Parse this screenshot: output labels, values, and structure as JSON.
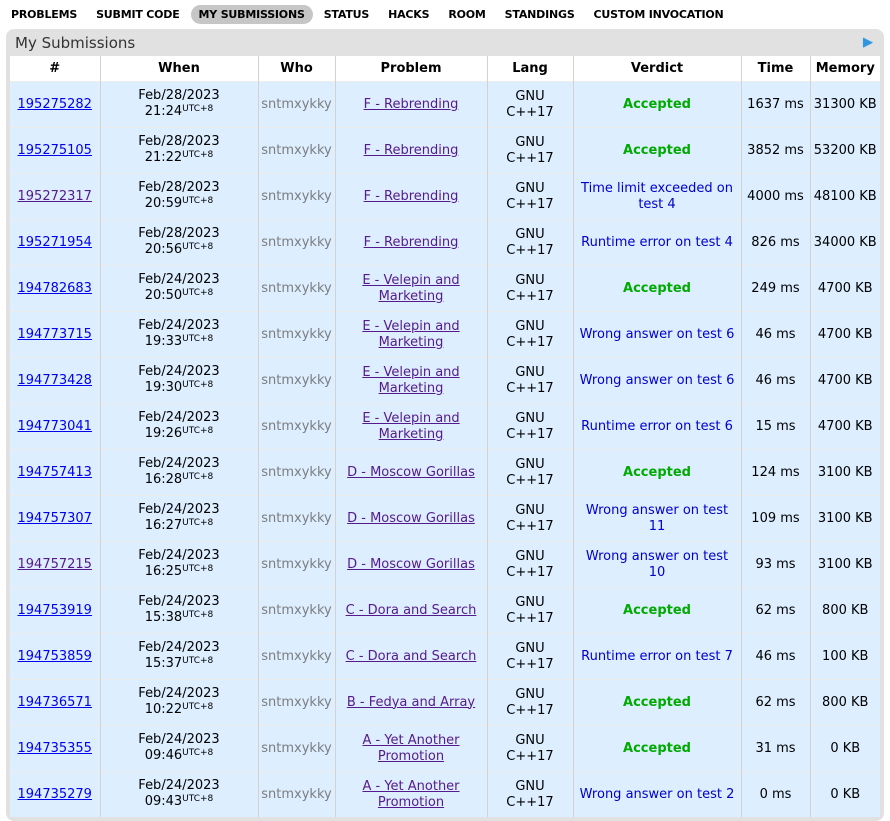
{
  "nav": {
    "items": [
      {
        "label": "PROBLEMS",
        "active": false
      },
      {
        "label": "SUBMIT CODE",
        "active": false
      },
      {
        "label": "MY SUBMISSIONS",
        "active": true
      },
      {
        "label": "STATUS",
        "active": false
      },
      {
        "label": "HACKS",
        "active": false
      },
      {
        "label": "ROOM",
        "active": false
      },
      {
        "label": "STANDINGS",
        "active": false
      },
      {
        "label": "CUSTOM INVOCATION",
        "active": false
      }
    ]
  },
  "panel": {
    "title": "My Submissions",
    "arrow_icon": "play-arrow-icon",
    "arrow_glyph": "▶"
  },
  "table": {
    "headers": [
      "#",
      "When",
      "Who",
      "Problem",
      "Lang",
      "Verdict",
      "Time",
      "Memory"
    ],
    "rows": [
      {
        "id": "195275282",
        "id_visited": false,
        "date": "Feb/28/2023",
        "time": "21:24",
        "tz": "UTC+8",
        "who": "sntmxykky",
        "problem": "F - Rebrending",
        "lang": "GNU C++17",
        "verdict": "Accepted",
        "verdict_type": "accepted",
        "exec_time": "1637 ms",
        "memory": "31300 KB"
      },
      {
        "id": "195275105",
        "id_visited": false,
        "date": "Feb/28/2023",
        "time": "21:22",
        "tz": "UTC+8",
        "who": "sntmxykky",
        "problem": "F - Rebrending",
        "lang": "GNU C++17",
        "verdict": "Accepted",
        "verdict_type": "accepted",
        "exec_time": "3852 ms",
        "memory": "53200 KB"
      },
      {
        "id": "195272317",
        "id_visited": true,
        "date": "Feb/28/2023",
        "time": "20:59",
        "tz": "UTC+8",
        "who": "sntmxykky",
        "problem": "F - Rebrending",
        "lang": "GNU C++17",
        "verdict": "Time limit exceeded on test 4",
        "verdict_type": "rejected",
        "exec_time": "4000 ms",
        "memory": "48100 KB"
      },
      {
        "id": "195271954",
        "id_visited": false,
        "date": "Feb/28/2023",
        "time": "20:56",
        "tz": "UTC+8",
        "who": "sntmxykky",
        "problem": "F - Rebrending",
        "lang": "GNU C++17",
        "verdict": "Runtime error on test 4",
        "verdict_type": "rejected",
        "exec_time": "826 ms",
        "memory": "34000 KB"
      },
      {
        "id": "194782683",
        "id_visited": false,
        "date": "Feb/24/2023",
        "time": "20:50",
        "tz": "UTC+8",
        "who": "sntmxykky",
        "problem": "E - Velepin and Marketing",
        "lang": "GNU C++17",
        "verdict": "Accepted",
        "verdict_type": "accepted",
        "exec_time": "249 ms",
        "memory": "4700 KB"
      },
      {
        "id": "194773715",
        "id_visited": false,
        "date": "Feb/24/2023",
        "time": "19:33",
        "tz": "UTC+8",
        "who": "sntmxykky",
        "problem": "E - Velepin and Marketing",
        "lang": "GNU C++17",
        "verdict": "Wrong answer on test 6",
        "verdict_type": "rejected",
        "exec_time": "46 ms",
        "memory": "4700 KB"
      },
      {
        "id": "194773428",
        "id_visited": false,
        "date": "Feb/24/2023",
        "time": "19:30",
        "tz": "UTC+8",
        "who": "sntmxykky",
        "problem": "E - Velepin and Marketing",
        "lang": "GNU C++17",
        "verdict": "Wrong answer on test 6",
        "verdict_type": "rejected",
        "exec_time": "46 ms",
        "memory": "4700 KB"
      },
      {
        "id": "194773041",
        "id_visited": false,
        "date": "Feb/24/2023",
        "time": "19:26",
        "tz": "UTC+8",
        "who": "sntmxykky",
        "problem": "E - Velepin and Marketing",
        "lang": "GNU C++17",
        "verdict": "Runtime error on test 6",
        "verdict_type": "rejected",
        "exec_time": "15 ms",
        "memory": "4700 KB"
      },
      {
        "id": "194757413",
        "id_visited": false,
        "date": "Feb/24/2023",
        "time": "16:28",
        "tz": "UTC+8",
        "who": "sntmxykky",
        "problem": "D - Moscow Gorillas",
        "lang": "GNU C++17",
        "verdict": "Accepted",
        "verdict_type": "accepted",
        "exec_time": "124 ms",
        "memory": "3100 KB"
      },
      {
        "id": "194757307",
        "id_visited": false,
        "date": "Feb/24/2023",
        "time": "16:27",
        "tz": "UTC+8",
        "who": "sntmxykky",
        "problem": "D - Moscow Gorillas",
        "lang": "GNU C++17",
        "verdict": "Wrong answer on test 11",
        "verdict_type": "rejected",
        "exec_time": "109 ms",
        "memory": "3100 KB"
      },
      {
        "id": "194757215",
        "id_visited": true,
        "date": "Feb/24/2023",
        "time": "16:25",
        "tz": "UTC+8",
        "who": "sntmxykky",
        "problem": "D - Moscow Gorillas",
        "lang": "GNU C++17",
        "verdict": "Wrong answer on test 10",
        "verdict_type": "rejected",
        "exec_time": "93 ms",
        "memory": "3100 KB"
      },
      {
        "id": "194753919",
        "id_visited": false,
        "date": "Feb/24/2023",
        "time": "15:38",
        "tz": "UTC+8",
        "who": "sntmxykky",
        "problem": "C - Dora and Search",
        "lang": "GNU C++17",
        "verdict": "Accepted",
        "verdict_type": "accepted",
        "exec_time": "62 ms",
        "memory": "800 KB"
      },
      {
        "id": "194753859",
        "id_visited": false,
        "date": "Feb/24/2023",
        "time": "15:37",
        "tz": "UTC+8",
        "who": "sntmxykky",
        "problem": "C - Dora and Search",
        "lang": "GNU C++17",
        "verdict": "Runtime error on test 7",
        "verdict_type": "rejected",
        "exec_time": "46 ms",
        "memory": "100 KB"
      },
      {
        "id": "194736571",
        "id_visited": false,
        "date": "Feb/24/2023",
        "time": "10:22",
        "tz": "UTC+8",
        "who": "sntmxykky",
        "problem": "B - Fedya and Array",
        "lang": "GNU C++17",
        "verdict": "Accepted",
        "verdict_type": "accepted",
        "exec_time": "62 ms",
        "memory": "800 KB"
      },
      {
        "id": "194735355",
        "id_visited": false,
        "date": "Feb/24/2023",
        "time": "09:46",
        "tz": "UTC+8",
        "who": "sntmxykky",
        "problem": "A - Yet Another Promotion",
        "lang": "GNU C++17",
        "verdict": "Accepted",
        "verdict_type": "accepted",
        "exec_time": "31 ms",
        "memory": "0 KB"
      },
      {
        "id": "194735279",
        "id_visited": false,
        "date": "Feb/24/2023",
        "time": "09:43",
        "tz": "UTC+8",
        "who": "sntmxykky",
        "problem": "A - Yet Another Promotion",
        "lang": "GNU C++17",
        "verdict": "Wrong answer on test 2",
        "verdict_type": "rejected",
        "exec_time": "0 ms",
        "memory": "0 KB"
      }
    ]
  },
  "colors": {
    "accepted_green": "#00aa00",
    "rejected_blue": "#0000cc",
    "link_blue": "#0000ee",
    "link_visited": "#551a8b",
    "row_highlight": "#dceeff",
    "panel_gray": "#e1e1e1",
    "active_tab_gray": "#c6c6c6",
    "arrow_blue": "#2f96dd"
  }
}
